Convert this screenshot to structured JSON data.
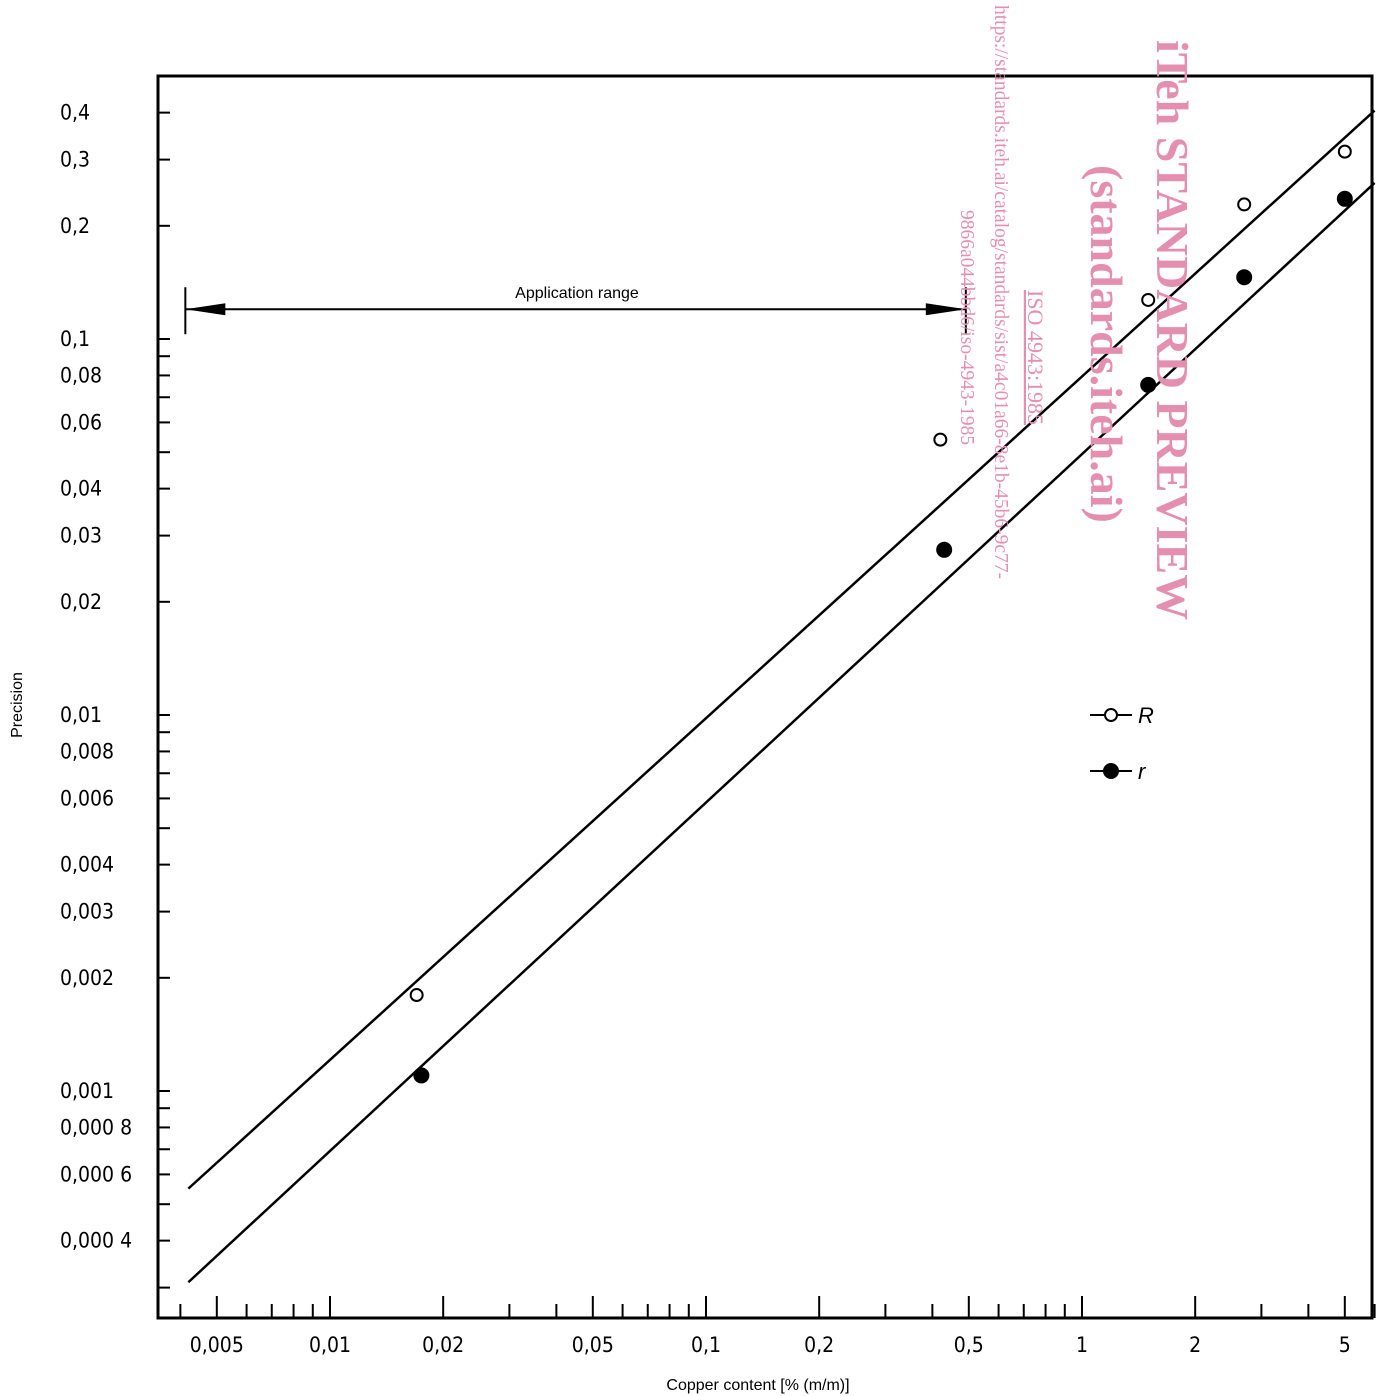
{
  "chart_data": {
    "type": "scatter",
    "title": "",
    "xlabel": "Copper content [% (m/m)]",
    "ylabel": "Precision",
    "x_scale": "log",
    "y_scale": "log",
    "xlim": [
      0.0038,
      6.2
    ],
    "ylim": [
      0.00025,
      0.55
    ],
    "x_tick_labels": [
      {
        "v": 0.005,
        "t": "0,005"
      },
      {
        "v": 0.01,
        "t": "0,01"
      },
      {
        "v": 0.02,
        "t": "0,02"
      },
      {
        "v": 0.05,
        "t": "0,05"
      },
      {
        "v": 0.1,
        "t": "0,1"
      },
      {
        "v": 0.2,
        "t": "0,2"
      },
      {
        "v": 0.5,
        "t": "0,5"
      },
      {
        "v": 1,
        "t": "1"
      },
      {
        "v": 2,
        "t": "2"
      },
      {
        "v": 5,
        "t": "5"
      }
    ],
    "y_tick_labels": [
      {
        "v": 0.4,
        "t": "0,4"
      },
      {
        "v": 0.3,
        "t": "0,3"
      },
      {
        "v": 0.2,
        "t": "0,2"
      },
      {
        "v": 0.1,
        "t": "0,1"
      },
      {
        "v": 0.08,
        "t": "0,08"
      },
      {
        "v": 0.06,
        "t": "0,06"
      },
      {
        "v": 0.04,
        "t": "0,04"
      },
      {
        "v": 0.03,
        "t": "0,03"
      },
      {
        "v": 0.02,
        "t": "0,02"
      },
      {
        "v": 0.01,
        "t": "0,01"
      },
      {
        "v": 0.008,
        "t": "0,008"
      },
      {
        "v": 0.006,
        "t": "0,006"
      },
      {
        "v": 0.004,
        "t": "0,004"
      },
      {
        "v": 0.003,
        "t": "0,003"
      },
      {
        "v": 0.002,
        "t": "0,002"
      },
      {
        "v": 0.001,
        "t": "0,001"
      },
      {
        "v": 0.0008,
        "t": "0,000 8"
      },
      {
        "v": 0.0006,
        "t": "0,000 6"
      },
      {
        "v": 0.0004,
        "t": "0,000 4"
      }
    ],
    "series": [
      {
        "name": "R",
        "marker": "open-circle",
        "points": [
          [
            0.017,
            0.0018
          ],
          [
            0.42,
            0.054
          ],
          [
            1.5,
            0.127
          ],
          [
            2.7,
            0.228
          ],
          [
            5.0,
            0.315
          ]
        ],
        "fit_line": [
          [
            0.0042,
            0.00055
          ],
          [
            6.0,
            0.405
          ]
        ]
      },
      {
        "name": "r",
        "marker": "filled-circle",
        "points": [
          [
            0.0175,
            0.0011
          ],
          [
            0.43,
            0.0275
          ],
          [
            1.5,
            0.0755
          ],
          [
            2.7,
            0.146
          ],
          [
            5.0,
            0.236
          ]
        ],
        "fit_line": [
          [
            0.0042,
            0.00031
          ],
          [
            6.0,
            0.26
          ]
        ]
      }
    ],
    "annotation": {
      "label": "Application range",
      "x_start": 0.0042,
      "x_end": 0.5,
      "y": 0.12
    },
    "legend": {
      "position": "center-right",
      "entries": [
        "R",
        "r"
      ]
    },
    "grid": false
  },
  "watermark": {
    "title_line1": "iTeh STANDARD PREVIEW",
    "title_line2": "(standards.iteh.ai)",
    "doc_id": "ISO 4943:1985",
    "url_line1": "https://standards.iteh.ai/catalog/standards/sist/a4c01a66-8e1b-45b6-9c77-",
    "url_line2": "9866a044bbd6/iso-4943-1985"
  },
  "colors": {
    "ink": "#000000",
    "watermark": "#e58fb0"
  }
}
